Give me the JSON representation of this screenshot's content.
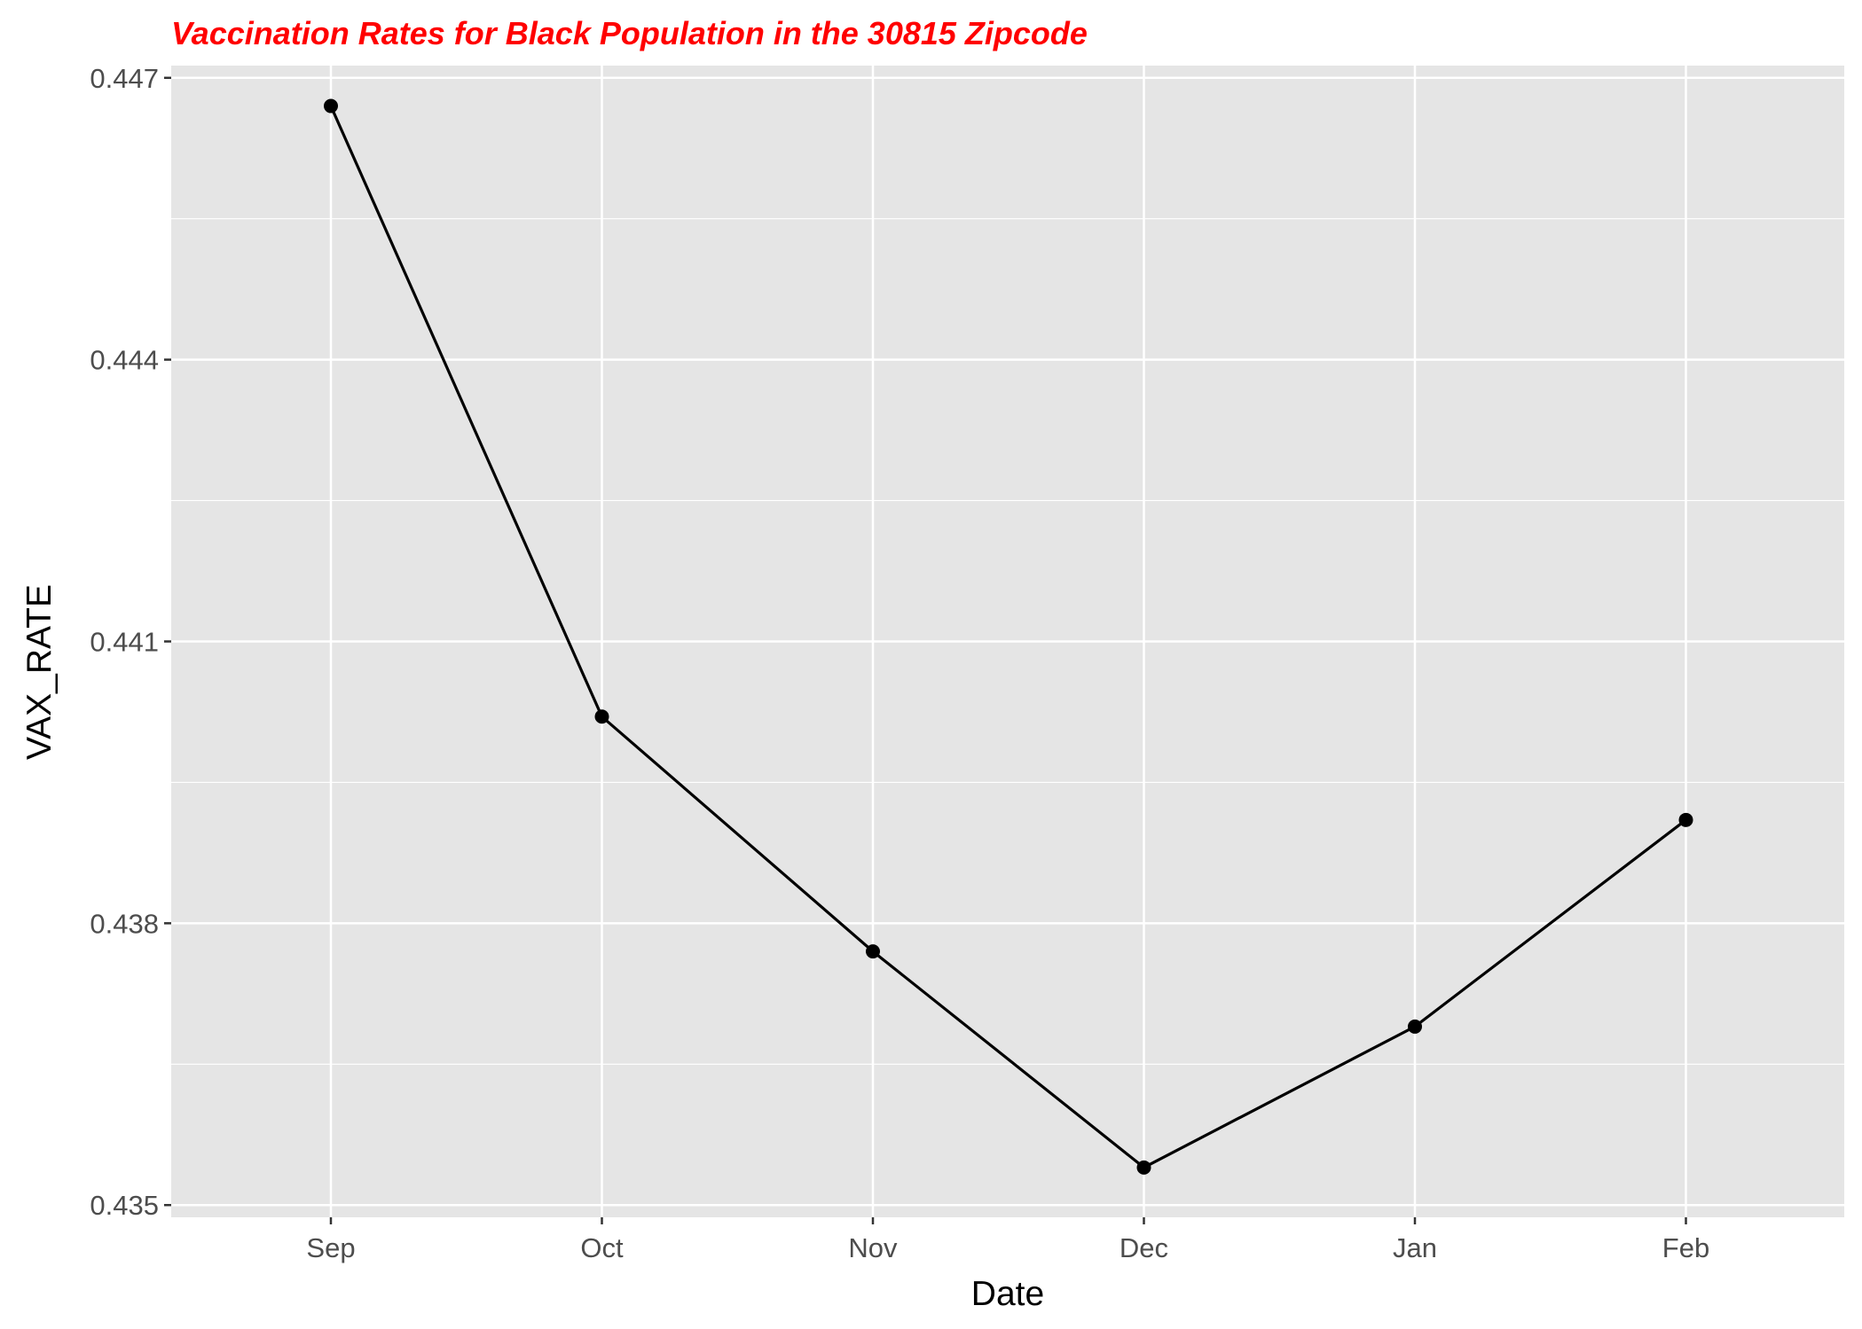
{
  "colors": {
    "title": "#ff0000",
    "panel_background": "#e5e5e5",
    "grid": "#ffffff",
    "line": "#000000",
    "point": "#000000",
    "tick": "#333333"
  },
  "chart_data": {
    "type": "line",
    "title": "Vaccination Rates for Black Population in the 30815 Zipcode",
    "xlabel": "Date",
    "ylabel": "VAX_RATE",
    "categories": [
      "Sep",
      "Oct",
      "Nov",
      "Dec",
      "Jan",
      "Feb"
    ],
    "values": [
      0.4467,
      0.4402,
      0.4377,
      0.4354,
      0.4369,
      0.4391
    ],
    "ylim": [
      0.43487,
      0.44713
    ],
    "yticks": [
      0.435,
      0.438,
      0.441,
      0.444,
      0.447
    ],
    "ytick_labels": [
      "0.435",
      "0.438",
      "0.441",
      "0.444",
      "0.447"
    ],
    "grid": true,
    "markers": true
  }
}
